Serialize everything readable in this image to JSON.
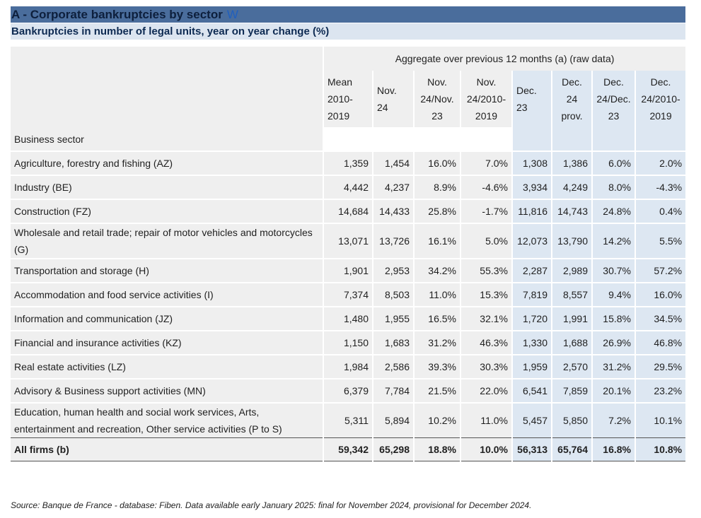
{
  "title": "A - Corporate bankruptcies by sector",
  "title_icon": "W",
  "subtitle": "Bankruptcies in number of legal units, year on year change (%)",
  "aggregate_header": "Aggregate over previous 12 months (a) (raw data)",
  "row_header_label": "Business sector",
  "columns": [
    [
      "Mean",
      "2010-",
      "2019"
    ],
    [
      "Nov.",
      "24"
    ],
    [
      "Nov.",
      "24/Nov.",
      "23"
    ],
    [
      "Nov.",
      "24/2010-",
      "2019"
    ],
    [
      "Dec.",
      "23"
    ],
    [
      "Dec.",
      "24",
      "prov."
    ],
    [
      "Dec.",
      "24/Dec.",
      "23"
    ],
    [
      "Dec.",
      "24/2010-",
      "2019"
    ]
  ],
  "rows": [
    {
      "sector": "Agriculture, forestry and fishing (AZ)",
      "values": [
        "1,359",
        "1,454",
        "16.0%",
        "7.0%",
        "1,308",
        "1,386",
        "6.0%",
        "2.0%"
      ]
    },
    {
      "sector": "Industry (BE)",
      "values": [
        "4,442",
        "4,237",
        "8.9%",
        "-4.6%",
        "3,934",
        "4,249",
        "8.0%",
        "-4.3%"
      ]
    },
    {
      "sector": "Construction (FZ)",
      "values": [
        "14,684",
        "14,433",
        "25.8%",
        "-1.7%",
        "11,816",
        "14,743",
        "24.8%",
        "0.4%"
      ]
    },
    {
      "sector": "Wholesale and retail trade; repair of motor vehicles and motorcycles (G)",
      "values": [
        "13,071",
        "13,726",
        "16.1%",
        "5.0%",
        "12,073",
        "13,790",
        "14.2%",
        "5.5%"
      ]
    },
    {
      "sector": "Transportation and storage (H)",
      "values": [
        "1,901",
        "2,953",
        "34.2%",
        "55.3%",
        "2,287",
        "2,989",
        "30.7%",
        "57.2%"
      ]
    },
    {
      "sector": "Accommodation and food service activities (I)",
      "values": [
        "7,374",
        "8,503",
        "11.0%",
        "15.3%",
        "7,819",
        "8,557",
        "9.4%",
        "16.0%"
      ]
    },
    {
      "sector": "Information and communication (JZ)",
      "values": [
        "1,480",
        "1,955",
        "16.5%",
        "32.1%",
        "1,720",
        "1,991",
        "15.8%",
        "34.5%"
      ]
    },
    {
      "sector": "Financial and insurance activities (KZ)",
      "values": [
        "1,150",
        "1,683",
        "31.2%",
        "46.3%",
        "1,330",
        "1,688",
        "26.9%",
        "46.8%"
      ]
    },
    {
      "sector": "Real estate activities (LZ)",
      "values": [
        "1,984",
        "2,586",
        "39.3%",
        "30.3%",
        "1,959",
        "2,570",
        "31.2%",
        "29.5%"
      ]
    },
    {
      "sector": "Advisory & Business support activities (MN)",
      "values": [
        "6,379",
        "7,784",
        "21.5%",
        "22.0%",
        "6,541",
        "7,859",
        "20.1%",
        "23.2%"
      ]
    },
    {
      "sector": "Education, human health and social work services, Arts, entertainment and recreation, Other service activities (P to S)",
      "values": [
        "5,311",
        "5,894",
        "10.2%",
        "11.0%",
        "5,457",
        "5,850",
        "7.2%",
        "10.1%"
      ]
    }
  ],
  "total": {
    "sector": "All firms (b)",
    "values": [
      "59,342",
      "65,298",
      "18.8%",
      "10.0%",
      "56,313",
      "65,764",
      "16.8%",
      "10.8%"
    ]
  },
  "source": "Source: Banque de France - database: Fiben. Data available early January 2025: final for November 2024, provisional for December 2024."
}
